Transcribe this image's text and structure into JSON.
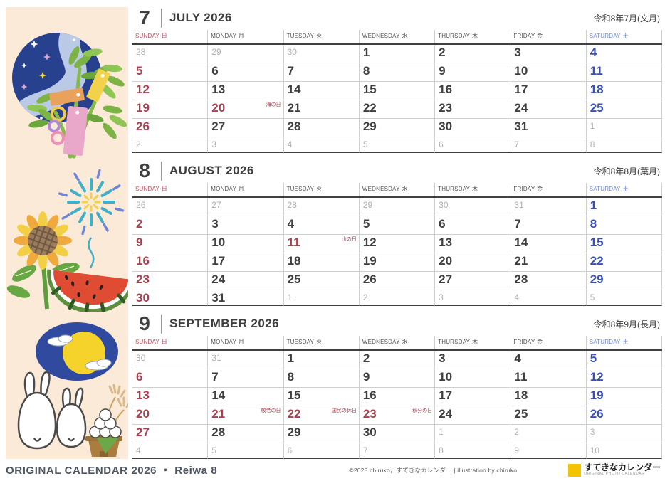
{
  "day_headers": [
    {
      "label": "SUNDAY·日",
      "type": "sun"
    },
    {
      "label": "MONDAY·月",
      "type": "wd"
    },
    {
      "label": "TUESDAY·火",
      "type": "wd"
    },
    {
      "label": "WEDNESDAY·水",
      "type": "wd"
    },
    {
      "label": "THURSDAY·木",
      "type": "wd"
    },
    {
      "label": "FRIDAY·金",
      "type": "wd"
    },
    {
      "label": "SATURDAY·土",
      "type": "sat"
    }
  ],
  "months": [
    {
      "id": "july",
      "num": "7",
      "name": "JULY 2026",
      "era": "令和8年7月(文月)",
      "weeks": [
        [
          {
            "d": "28",
            "t": "adj"
          },
          {
            "d": "29",
            "t": "adj"
          },
          {
            "d": "30",
            "t": "adj"
          },
          {
            "d": "1"
          },
          {
            "d": "2"
          },
          {
            "d": "3"
          },
          {
            "d": "4",
            "t": "sat"
          }
        ],
        [
          {
            "d": "5",
            "t": "sun"
          },
          {
            "d": "6"
          },
          {
            "d": "7"
          },
          {
            "d": "8"
          },
          {
            "d": "9"
          },
          {
            "d": "10"
          },
          {
            "d": "11",
            "t": "sat"
          }
        ],
        [
          {
            "d": "12",
            "t": "sun"
          },
          {
            "d": "13"
          },
          {
            "d": "14"
          },
          {
            "d": "15"
          },
          {
            "d": "16"
          },
          {
            "d": "17"
          },
          {
            "d": "18",
            "t": "sat"
          }
        ],
        [
          {
            "d": "19",
            "t": "sun"
          },
          {
            "d": "20",
            "t": "hol",
            "l": "海の日"
          },
          {
            "d": "21"
          },
          {
            "d": "22"
          },
          {
            "d": "23"
          },
          {
            "d": "24"
          },
          {
            "d": "25",
            "t": "sat"
          }
        ],
        [
          {
            "d": "26",
            "t": "sun"
          },
          {
            "d": "27"
          },
          {
            "d": "28"
          },
          {
            "d": "29"
          },
          {
            "d": "30"
          },
          {
            "d": "31"
          },
          {
            "d": "1",
            "t": "adj"
          }
        ],
        [
          {
            "d": "2",
            "t": "adj"
          },
          {
            "d": "3",
            "t": "adj"
          },
          {
            "d": "4",
            "t": "adj"
          },
          {
            "d": "5",
            "t": "adj"
          },
          {
            "d": "6",
            "t": "adj"
          },
          {
            "d": "7",
            "t": "adj"
          },
          {
            "d": "8",
            "t": "adj"
          }
        ]
      ]
    },
    {
      "id": "august",
      "num": "8",
      "name": "AUGUST 2026",
      "era": "令和8年8月(葉月)",
      "weeks": [
        [
          {
            "d": "26",
            "t": "adj"
          },
          {
            "d": "27",
            "t": "adj"
          },
          {
            "d": "28",
            "t": "adj"
          },
          {
            "d": "29",
            "t": "adj"
          },
          {
            "d": "30",
            "t": "adj"
          },
          {
            "d": "31",
            "t": "adj"
          },
          {
            "d": "1",
            "t": "sat"
          }
        ],
        [
          {
            "d": "2",
            "t": "sun"
          },
          {
            "d": "3"
          },
          {
            "d": "4"
          },
          {
            "d": "5"
          },
          {
            "d": "6"
          },
          {
            "d": "7"
          },
          {
            "d": "8",
            "t": "sat"
          }
        ],
        [
          {
            "d": "9",
            "t": "sun"
          },
          {
            "d": "10"
          },
          {
            "d": "11",
            "t": "hol",
            "l": "山の日"
          },
          {
            "d": "12"
          },
          {
            "d": "13"
          },
          {
            "d": "14"
          },
          {
            "d": "15",
            "t": "sat"
          }
        ],
        [
          {
            "d": "16",
            "t": "sun"
          },
          {
            "d": "17"
          },
          {
            "d": "18"
          },
          {
            "d": "19"
          },
          {
            "d": "20"
          },
          {
            "d": "21"
          },
          {
            "d": "22",
            "t": "sat"
          }
        ],
        [
          {
            "d": "23",
            "t": "sun"
          },
          {
            "d": "24"
          },
          {
            "d": "25"
          },
          {
            "d": "26"
          },
          {
            "d": "27"
          },
          {
            "d": "28"
          },
          {
            "d": "29",
            "t": "sat"
          }
        ],
        [
          {
            "d": "30",
            "t": "sun"
          },
          {
            "d": "31"
          },
          {
            "d": "1",
            "t": "adj"
          },
          {
            "d": "2",
            "t": "adj"
          },
          {
            "d": "3",
            "t": "adj"
          },
          {
            "d": "4",
            "t": "adj"
          },
          {
            "d": "5",
            "t": "adj"
          }
        ]
      ]
    },
    {
      "id": "september",
      "num": "9",
      "name": "SEPTEMBER 2026",
      "era": "令和8年9月(長月)",
      "weeks": [
        [
          {
            "d": "30",
            "t": "adj"
          },
          {
            "d": "31",
            "t": "adj"
          },
          {
            "d": "1"
          },
          {
            "d": "2"
          },
          {
            "d": "3"
          },
          {
            "d": "4"
          },
          {
            "d": "5",
            "t": "sat"
          }
        ],
        [
          {
            "d": "6",
            "t": "sun"
          },
          {
            "d": "7"
          },
          {
            "d": "8"
          },
          {
            "d": "9"
          },
          {
            "d": "10"
          },
          {
            "d": "11"
          },
          {
            "d": "12",
            "t": "sat"
          }
        ],
        [
          {
            "d": "13",
            "t": "sun"
          },
          {
            "d": "14"
          },
          {
            "d": "15"
          },
          {
            "d": "16"
          },
          {
            "d": "17"
          },
          {
            "d": "18"
          },
          {
            "d": "19",
            "t": "sat"
          }
        ],
        [
          {
            "d": "20",
            "t": "sun"
          },
          {
            "d": "21",
            "t": "hol",
            "l": "敬老の日"
          },
          {
            "d": "22",
            "t": "hol",
            "l": "国民の休日"
          },
          {
            "d": "23",
            "t": "hol",
            "l": "秋分の日"
          },
          {
            "d": "24"
          },
          {
            "d": "25"
          },
          {
            "d": "26",
            "t": "sat"
          }
        ],
        [
          {
            "d": "27",
            "t": "sun"
          },
          {
            "d": "28"
          },
          {
            "d": "29"
          },
          {
            "d": "30"
          },
          {
            "d": "1",
            "t": "adj"
          },
          {
            "d": "2",
            "t": "adj"
          },
          {
            "d": "3",
            "t": "adj"
          }
        ],
        [
          {
            "d": "4",
            "t": "adj"
          },
          {
            "d": "5",
            "t": "adj"
          },
          {
            "d": "6",
            "t": "adj"
          },
          {
            "d": "7",
            "t": "adj"
          },
          {
            "d": "8",
            "t": "adj"
          },
          {
            "d": "9",
            "t": "adj"
          },
          {
            "d": "10",
            "t": "adj"
          }
        ]
      ]
    }
  ],
  "footer": {
    "title": "ORIGINAL CALENDAR 2026 ・ Reiwa 8",
    "credit": "©2025 chiruko，すてきなカレンダー | illustration by chiruko",
    "logo_text": "すてきなカレンダー",
    "logo_subtext": "ORIGINAL PHOTO CALENDAR"
  },
  "illustrations": {
    "july": "tanabata bamboo branch with tanzaku strips over a starry night-sky circle",
    "august": "sunflower, fireworks burst and watermelon slice",
    "september": "full moon with clouds, two white rabbits and tsukimi dango with susuki grass"
  },
  "colors": {
    "holiday_red": "#a84250",
    "saturday_blue": "#3a4fb5",
    "adjacent_gray": "#b0b0b0",
    "text_dark": "#3f3f3f",
    "panel_cream": "#fcead9",
    "logo_yellow": "#f5c400"
  }
}
